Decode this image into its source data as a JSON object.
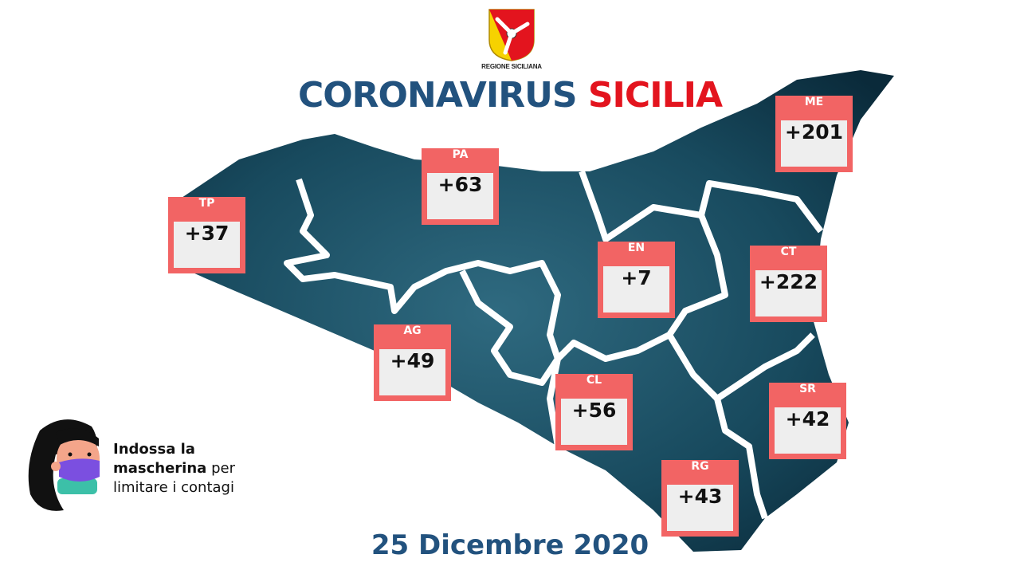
{
  "logo": {
    "text": "REGIONE SICILIANA"
  },
  "title": {
    "part1": "CORONAVIRUS",
    "part2": "SICILIA"
  },
  "provinces": [
    {
      "code": "TP",
      "value": "+37"
    },
    {
      "code": "PA",
      "value": "+63"
    },
    {
      "code": "ME",
      "value": "+201"
    },
    {
      "code": "EN",
      "value": "+7"
    },
    {
      "code": "CT",
      "value": "+222"
    },
    {
      "code": "AG",
      "value": "+49"
    },
    {
      "code": "CL",
      "value": "+56"
    },
    {
      "code": "SR",
      "value": "+42"
    },
    {
      "code": "RG",
      "value": "+43"
    }
  ],
  "tip": {
    "bold1": "Indossa la",
    "bold2": "mascherina",
    "rest1": "per",
    "rest2": "limitare i contagi"
  },
  "date": "25 Dicembre 2020",
  "colors": {
    "title_blue": "#22527e",
    "title_red": "#e3141e",
    "box": "#f26464",
    "map": "#0f3b4f"
  }
}
